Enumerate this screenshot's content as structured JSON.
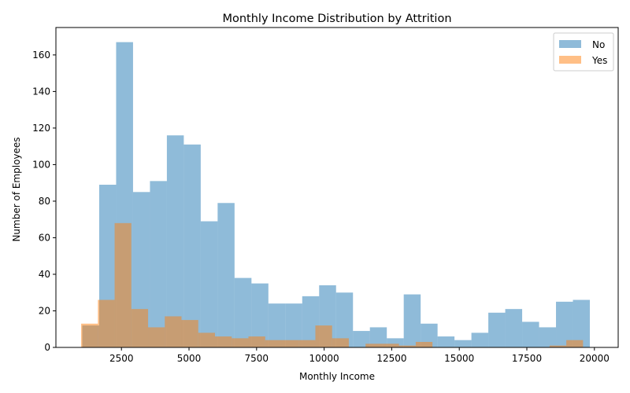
{
  "chart_data": {
    "type": "bar",
    "subtype": "overlapping-histogram",
    "title": "Monthly Income Distribution by Attrition",
    "xlabel": "Monthly Income",
    "ylabel": "Number of Employees",
    "xlim": [
      75,
      20880
    ],
    "ylim": [
      0,
      175
    ],
    "xticks": [
      2500,
      5000,
      7500,
      10000,
      12500,
      15000,
      17500,
      20000
    ],
    "yticks": [
      0,
      20,
      40,
      60,
      80,
      100,
      120,
      140,
      160
    ],
    "grid": false,
    "legend_position": "top-right",
    "series": [
      {
        "name": "No",
        "color": "#1f77b4",
        "opacity": 0.5,
        "bin_edges": [
          1051,
          1677,
          2303,
          2929,
          3555,
          4181,
          4807,
          5433,
          6059,
          6685,
          7311,
          7937,
          8563,
          9189,
          9815,
          10441,
          11067,
          11693,
          12319,
          12945,
          13571,
          14197,
          14823,
          15449,
          16075,
          16701,
          17327,
          17953,
          18579,
          19205,
          19831
        ],
        "counts": [
          12,
          89,
          167,
          85,
          91,
          116,
          111,
          69,
          79,
          38,
          35,
          24,
          24,
          28,
          34,
          30,
          9,
          11,
          5,
          29,
          13,
          6,
          4,
          8,
          19,
          21,
          14,
          11,
          25,
          26
        ]
      },
      {
        "name": "Yes",
        "color": "#ff7f0e",
        "opacity": 0.5,
        "bin_edges": [
          1009,
          1628,
          2247,
          2866,
          3485,
          4104,
          4723,
          5342,
          5961,
          6580,
          7199,
          7818,
          8437,
          9056,
          9675,
          10294,
          10913,
          11532,
          12151,
          12770,
          13389,
          14008,
          14627,
          15246,
          15865,
          16484,
          17103,
          17722,
          18341,
          18960,
          19579
        ],
        "counts": [
          13,
          26,
          68,
          21,
          11,
          17,
          15,
          8,
          6,
          5,
          6,
          4,
          4,
          4,
          12,
          5,
          0,
          2,
          2,
          1,
          3,
          0,
          0,
          0,
          0,
          0,
          0,
          0,
          1,
          4
        ]
      }
    ]
  }
}
